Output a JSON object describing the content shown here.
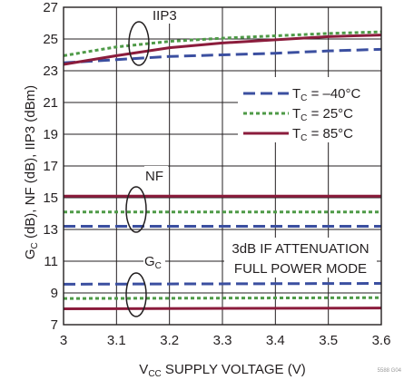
{
  "chart_data": {
    "type": "line",
    "xlabel": {
      "main": "V",
      "sub": "CC",
      "rest": " SUPPLY VOLTAGE (V)"
    },
    "ylabel": [
      {
        "t": "G",
        "sub": false
      },
      {
        "t": "C",
        "sub": true
      },
      {
        "t": " (dB), NF (dB), IIP3 (dBm)",
        "sub": false
      }
    ],
    "xlim": [
      3,
      3.6
    ],
    "ylim": [
      7,
      27
    ],
    "x_ticks": [
      "3",
      "3.1",
      "3.2",
      "3.3",
      "3.4",
      "3.5",
      "3.6"
    ],
    "y_ticks": [
      "7",
      "9",
      "11",
      "13",
      "15",
      "17",
      "19",
      "21",
      "23",
      "25",
      "27"
    ],
    "grid": true,
    "legend_position": "right",
    "series": [
      {
        "name": "T_C = –40°C",
        "style": "dashed",
        "color": "#3b4fa0",
        "role": "IIP3",
        "x": [
          3,
          3.1,
          3.2,
          3.3,
          3.4,
          3.5,
          3.6
        ],
        "y": [
          23.5,
          23.7,
          23.9,
          24.0,
          24.1,
          24.25,
          24.35
        ]
      },
      {
        "name": "T_C = 25°C",
        "style": "dotted",
        "color": "#4e9a47",
        "role": "IIP3",
        "x": [
          3,
          3.1,
          3.2,
          3.3,
          3.4,
          3.5,
          3.6
        ],
        "y": [
          23.95,
          24.5,
          24.85,
          25.05,
          25.2,
          25.35,
          25.45
        ]
      },
      {
        "name": "T_C = 85°C",
        "style": "solid",
        "color": "#8b1c3c",
        "role": "IIP3",
        "x": [
          3,
          3.1,
          3.2,
          3.3,
          3.4,
          3.5,
          3.6
        ],
        "y": [
          23.4,
          23.95,
          24.45,
          24.75,
          24.95,
          25.15,
          25.25
        ]
      },
      {
        "name": "T_C = –40°C",
        "style": "dashed",
        "color": "#3b4fa0",
        "role": "NF",
        "x": [
          3,
          3.6
        ],
        "y": [
          13.2,
          13.2
        ]
      },
      {
        "name": "T_C = 25°C",
        "style": "dotted",
        "color": "#4e9a47",
        "role": "NF",
        "x": [
          3,
          3.6
        ],
        "y": [
          14.1,
          14.1
        ]
      },
      {
        "name": "T_C = 85°C",
        "style": "solid",
        "color": "#8b1c3c",
        "role": "NF",
        "x": [
          3,
          3.6
        ],
        "y": [
          15.1,
          15.1
        ]
      },
      {
        "name": "T_C = –40°C",
        "style": "dashed",
        "color": "#3b4fa0",
        "role": "GC",
        "x": [
          3,
          3.6
        ],
        "y": [
          9.55,
          9.6
        ]
      },
      {
        "name": "T_C = 25°C",
        "style": "dotted",
        "color": "#4e9a47",
        "role": "GC",
        "x": [
          3,
          3.6
        ],
        "y": [
          8.65,
          8.7
        ]
      },
      {
        "name": "T_C = 85°C",
        "style": "solid",
        "color": "#8b1c3c",
        "role": "GC",
        "x": [
          3,
          3.6
        ],
        "y": [
          8.0,
          8.05
        ]
      }
    ],
    "legend": [
      {
        "pre": "T",
        "sub": "C",
        "post": " = –40°C",
        "style": "dashed",
        "color": "#3b4fa0"
      },
      {
        "pre": "T",
        "sub": "C",
        "post": " = 25°C",
        "style": "dotted",
        "color": "#4e9a47"
      },
      {
        "pre": "T",
        "sub": "C",
        "post": " = 85°C",
        "style": "solid",
        "color": "#8b1c3c"
      }
    ],
    "annotations": {
      "iip3": "IIP3",
      "nf": "NF",
      "gc": {
        "main": "G",
        "sub": "C"
      },
      "condition_line1": "3dB IF ATTENUATION",
      "condition_line2": "FULL POWER MODE",
      "figure_id": "5588 G04"
    }
  }
}
